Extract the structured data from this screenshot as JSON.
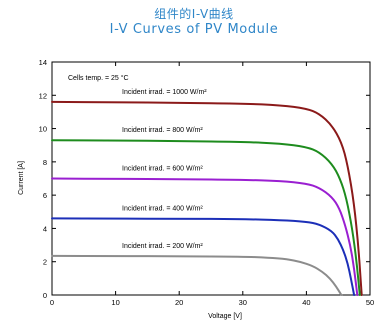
{
  "header": {
    "title_cn": "组件的I-V曲线",
    "title_en": "I-V Curves of  PV Module"
  },
  "chart_data": {
    "type": "line",
    "title": "I-V Curves of  PV Module",
    "xlabel": "Voltage [V]",
    "ylabel": "Current [A]",
    "xlim": [
      0,
      50
    ],
    "ylim": [
      0,
      14
    ],
    "xticks": [
      0,
      10,
      20,
      30,
      40,
      50
    ],
    "yticks": [
      0,
      2,
      4,
      6,
      8,
      10,
      12,
      14
    ],
    "grid": false,
    "annotation": "Cells temp. = 25 °C",
    "series": [
      {
        "name": "Incident irrad. = 1000 W/m²",
        "color": "#8b1a1a",
        "x": [
          0,
          10,
          20,
          30,
          36,
          40,
          42,
          44,
          45.5,
          46.5,
          47.5,
          48.2,
          48.7
        ],
        "y": [
          11.6,
          11.58,
          11.55,
          11.5,
          11.4,
          11.2,
          10.9,
          10.2,
          9.2,
          7.8,
          5.5,
          2.8,
          0
        ]
      },
      {
        "name": "Incident irrad. = 800 W/m²",
        "color": "#1e8c1e",
        "x": [
          0,
          10,
          20,
          30,
          36,
          40,
          42,
          44,
          45.3,
          46.3,
          47.2,
          47.9,
          48.4
        ],
        "y": [
          9.3,
          9.28,
          9.25,
          9.2,
          9.1,
          8.9,
          8.6,
          7.9,
          7.0,
          5.8,
          4.0,
          2.0,
          0
        ]
      },
      {
        "name": "Incident irrad. = 600 W/m²",
        "color": "#9a1fd1",
        "x": [
          0,
          10,
          20,
          30,
          36,
          40,
          42,
          44,
          45.2,
          46.1,
          46.9,
          47.5,
          48.0
        ],
        "y": [
          7.0,
          6.98,
          6.96,
          6.92,
          6.85,
          6.7,
          6.45,
          5.9,
          5.2,
          4.2,
          3.0,
          1.6,
          0
        ]
      },
      {
        "name": "Incident irrad. = 400 W/m²",
        "color": "#1c2fb8",
        "x": [
          0,
          10,
          20,
          30,
          36,
          40,
          42,
          44,
          45.0,
          45.8,
          46.5,
          47.0,
          47.5
        ],
        "y": [
          4.6,
          4.59,
          4.58,
          4.56,
          4.5,
          4.4,
          4.25,
          3.85,
          3.35,
          2.7,
          1.9,
          1.0,
          0
        ]
      },
      {
        "name": "Incident irrad. = 200 W/m²",
        "color": "#8c8c8c",
        "x": [
          0,
          10,
          20,
          30,
          34,
          37,
          39,
          41,
          42.5,
          43.7,
          44.7,
          45.5
        ],
        "y": [
          2.35,
          2.34,
          2.33,
          2.3,
          2.25,
          2.15,
          2.0,
          1.75,
          1.4,
          1.0,
          0.5,
          0
        ]
      }
    ]
  }
}
